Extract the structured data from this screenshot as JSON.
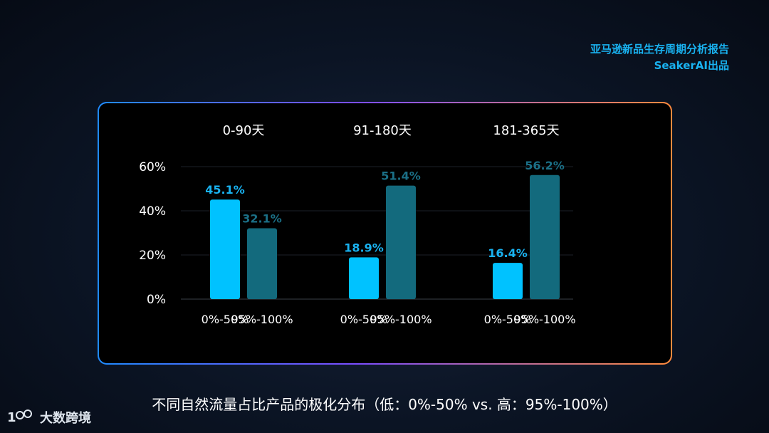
{
  "brand": {
    "report_title": "亚马逊新品生存周期分析报告",
    "producer": "SeakerAI出品"
  },
  "caption": "不同自然流量占比产品的极化分布（低：0%-50% vs. 高：95%-100%）",
  "logo": {
    "text": "大数跨境",
    "icon": "100-logo-icon"
  },
  "colors": {
    "low": "#00c2ff",
    "high": "#136a7d",
    "high_label": "#1b6f86",
    "low_label": "#19b2f0"
  },
  "chart_data": {
    "type": "bar",
    "ylim": [
      0,
      60
    ],
    "yticks": [
      "0%",
      "20%",
      "40%",
      "60%"
    ],
    "ytick_values": [
      0,
      20,
      40,
      60
    ],
    "groups": [
      {
        "title": "0-90天",
        "bars": [
          {
            "category": "0%-50%",
            "value": 45.1,
            "label": "45.1%"
          },
          {
            "category": "95%-100%",
            "value": 32.1,
            "label": "32.1%"
          }
        ]
      },
      {
        "title": "91-180天",
        "bars": [
          {
            "category": "0%-50%",
            "value": 18.9,
            "label": "18.9%"
          },
          {
            "category": "95%-100%",
            "value": 51.4,
            "label": "51.4%"
          }
        ]
      },
      {
        "title": "181-365天",
        "bars": [
          {
            "category": "0%-50%",
            "value": 16.4,
            "label": "16.4%"
          },
          {
            "category": "95%-100%",
            "value": 56.2,
            "label": "56.2%"
          }
        ]
      }
    ]
  }
}
